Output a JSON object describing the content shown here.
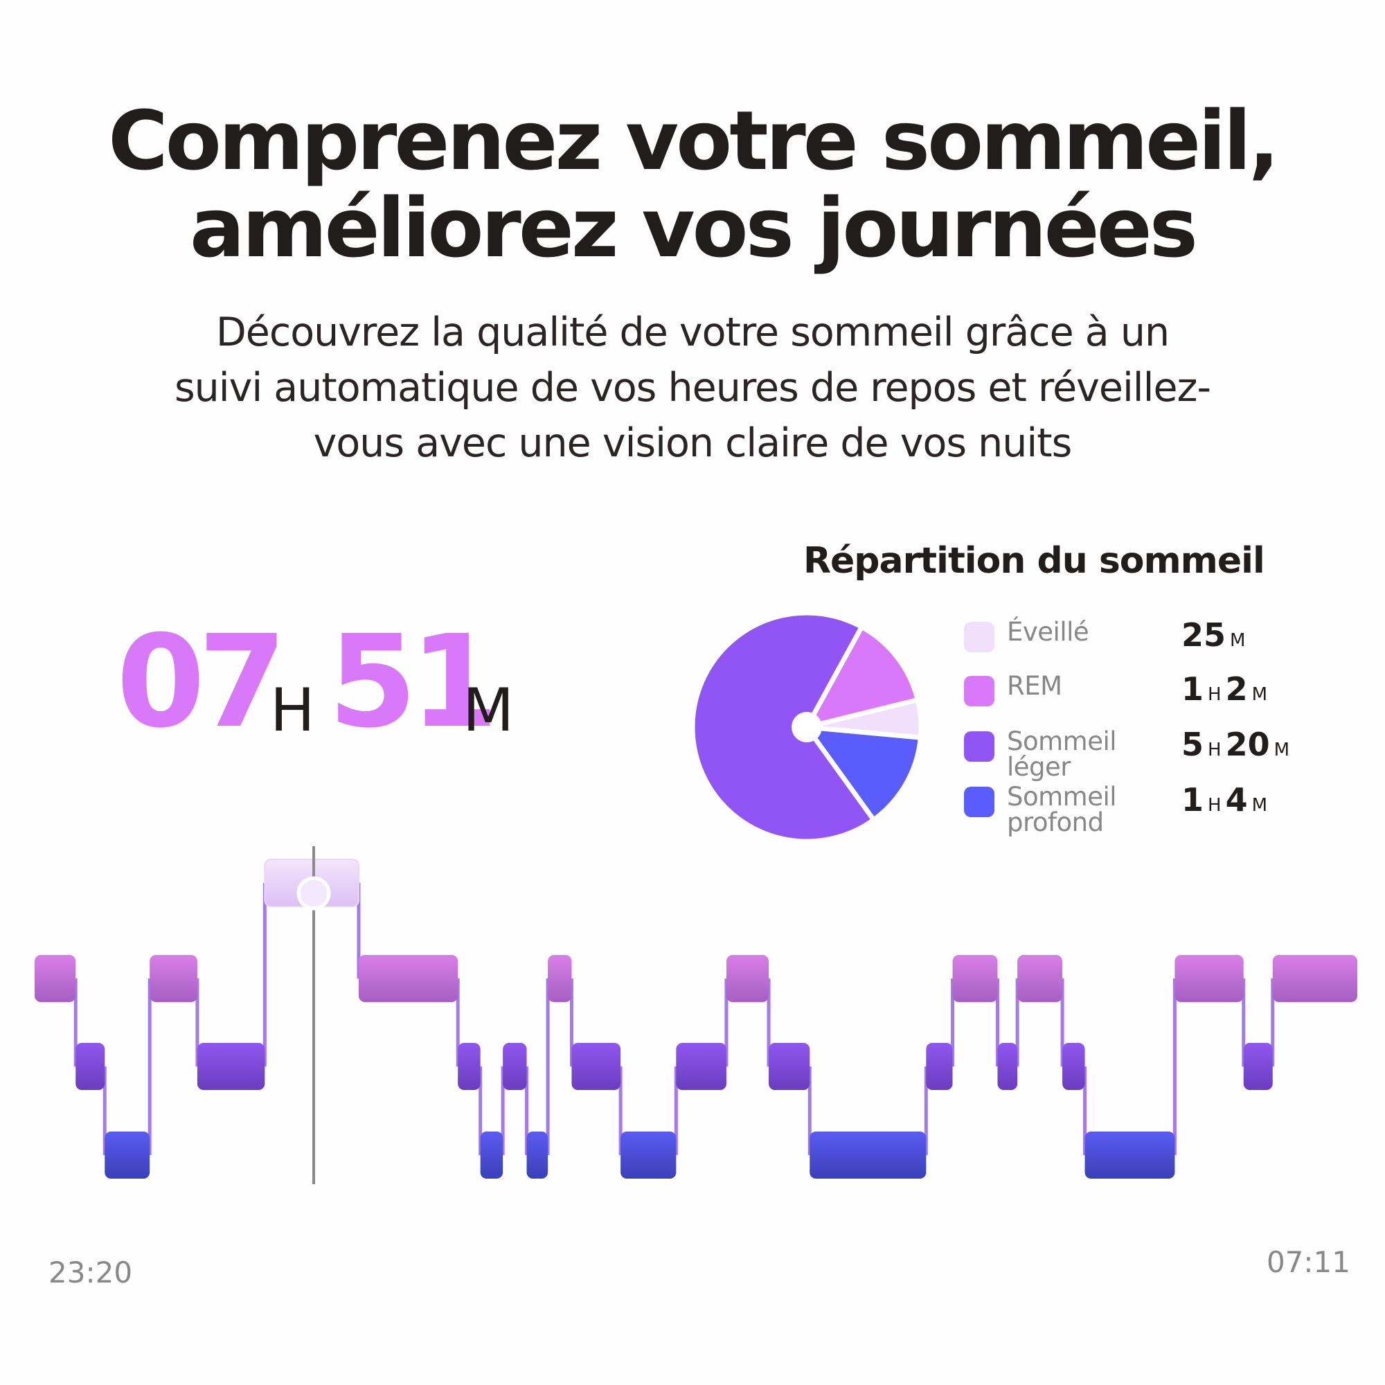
{
  "header": {
    "title_lines": [
      "Comprenez votre sommeil,",
      "améliorez vos journées"
    ],
    "subtitle_lines": [
      "Découvrez la qualité de votre sommeil grâce à un",
      "suivi automatique de vos heures de repos et réveillez-",
      "vous avec une vision claire de vos nuits"
    ]
  },
  "duration": {
    "hours": "07",
    "hours_unit": "H",
    "minutes": "51",
    "minutes_unit": "M"
  },
  "breakdown": {
    "title": "Répartition du sommeil",
    "items": [
      {
        "label": "Éveillé",
        "value": [
          {
            "n": "25",
            "u": "M"
          }
        ],
        "minutes": 25,
        "color": "#f1e0fb"
      },
      {
        "label": "REM",
        "value": [
          {
            "n": "1",
            "u": "H"
          },
          {
            "n": "2",
            "u": "M"
          }
        ],
        "minutes": 62,
        "color": "#d978f8"
      },
      {
        "label": "Sommeil léger",
        "value": [
          {
            "n": "5",
            "u": "H"
          },
          {
            "n": "20",
            "u": "M"
          }
        ],
        "minutes": 320,
        "color": "#9155f5"
      },
      {
        "label": "Sommeil profond",
        "value": [
          {
            "n": "1",
            "u": "H"
          },
          {
            "n": "4",
            "u": "M"
          }
        ],
        "minutes": 64,
        "color": "#5a5cfb"
      }
    ]
  },
  "chart_data": {
    "type": "hypnogram",
    "x_start": "23:20",
    "x_end": "07:11",
    "levels": [
      "Éveillé",
      "REM",
      "Sommeil léger",
      "Sommeil profond"
    ],
    "stages": [
      [
        "REM",
        0.0,
        0.031
      ],
      [
        "Sommeil léger",
        0.031,
        0.053
      ],
      [
        "Sommeil profond",
        0.053,
        0.087
      ],
      [
        "REM",
        0.087,
        0.123
      ],
      [
        "Sommeil léger",
        0.123,
        0.174
      ],
      [
        "Éveillé",
        0.174,
        0.245
      ],
      [
        "REM",
        0.245,
        0.32
      ],
      [
        "Sommeil léger",
        0.32,
        0.337
      ],
      [
        "Sommeil profond",
        0.337,
        0.354
      ],
      [
        "Sommeil léger",
        0.354,
        0.372
      ],
      [
        "Sommeil profond",
        0.372,
        0.388
      ],
      [
        "REM",
        0.388,
        0.406
      ],
      [
        "Sommeil léger",
        0.406,
        0.443
      ],
      [
        "Sommeil profond",
        0.443,
        0.485
      ],
      [
        "Sommeil léger",
        0.485,
        0.523
      ],
      [
        "REM",
        0.523,
        0.555
      ],
      [
        "Sommeil léger",
        0.555,
        0.586
      ],
      [
        "Sommeil profond",
        0.586,
        0.674
      ],
      [
        "Sommeil léger",
        0.674,
        0.694
      ],
      [
        "REM",
        0.694,
        0.728
      ],
      [
        "Sommeil léger",
        0.728,
        0.743
      ],
      [
        "REM",
        0.743,
        0.777
      ],
      [
        "Sommeil léger",
        0.777,
        0.794
      ],
      [
        "Sommeil profond",
        0.794,
        0.862
      ],
      [
        "REM",
        0.862,
        0.914
      ],
      [
        "Sommeil léger",
        0.914,
        0.936
      ],
      [
        "REM",
        0.936,
        1.0
      ]
    ],
    "cursor_position": 0.211
  }
}
